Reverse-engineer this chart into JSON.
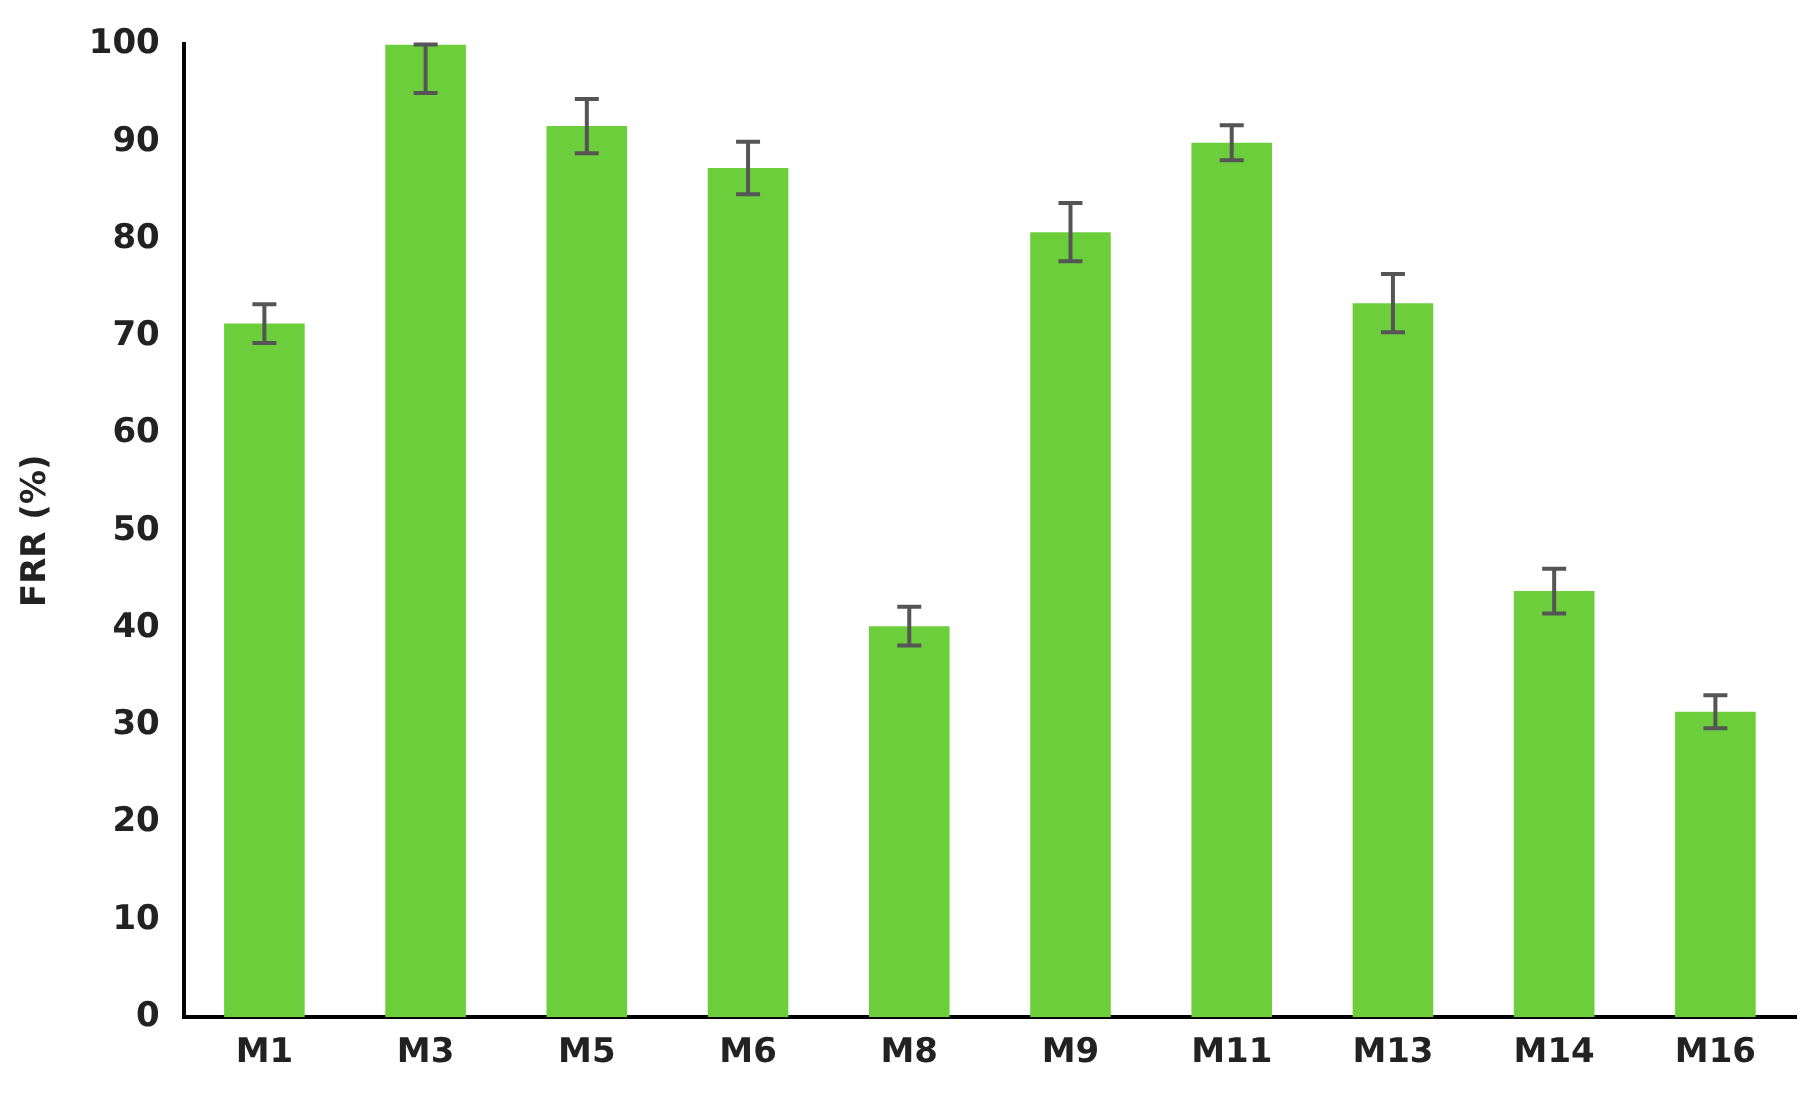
{
  "chart_data": {
    "type": "bar",
    "ylabel": "FRR (%)",
    "categories": [
      "M1",
      "M3",
      "M5",
      "M6",
      "M8",
      "M9",
      "M11",
      "M13",
      "M14",
      "M16"
    ],
    "values": [
      71.3,
      100,
      91.6,
      87.3,
      40.2,
      80.7,
      89.9,
      73.4,
      43.8,
      31.4
    ],
    "errors": [
      2,
      [
        95,
        100
      ],
      2.8,
      2.7,
      2,
      3,
      1.8,
      3,
      2.3,
      1.7
    ],
    "color": "#6dce3c",
    "ylim": [
      0,
      100
    ],
    "yticks": [
      0,
      10,
      20,
      30,
      40,
      50,
      60,
      70,
      80,
      90,
      100
    ],
    "grid": false,
    "legend": false
  }
}
